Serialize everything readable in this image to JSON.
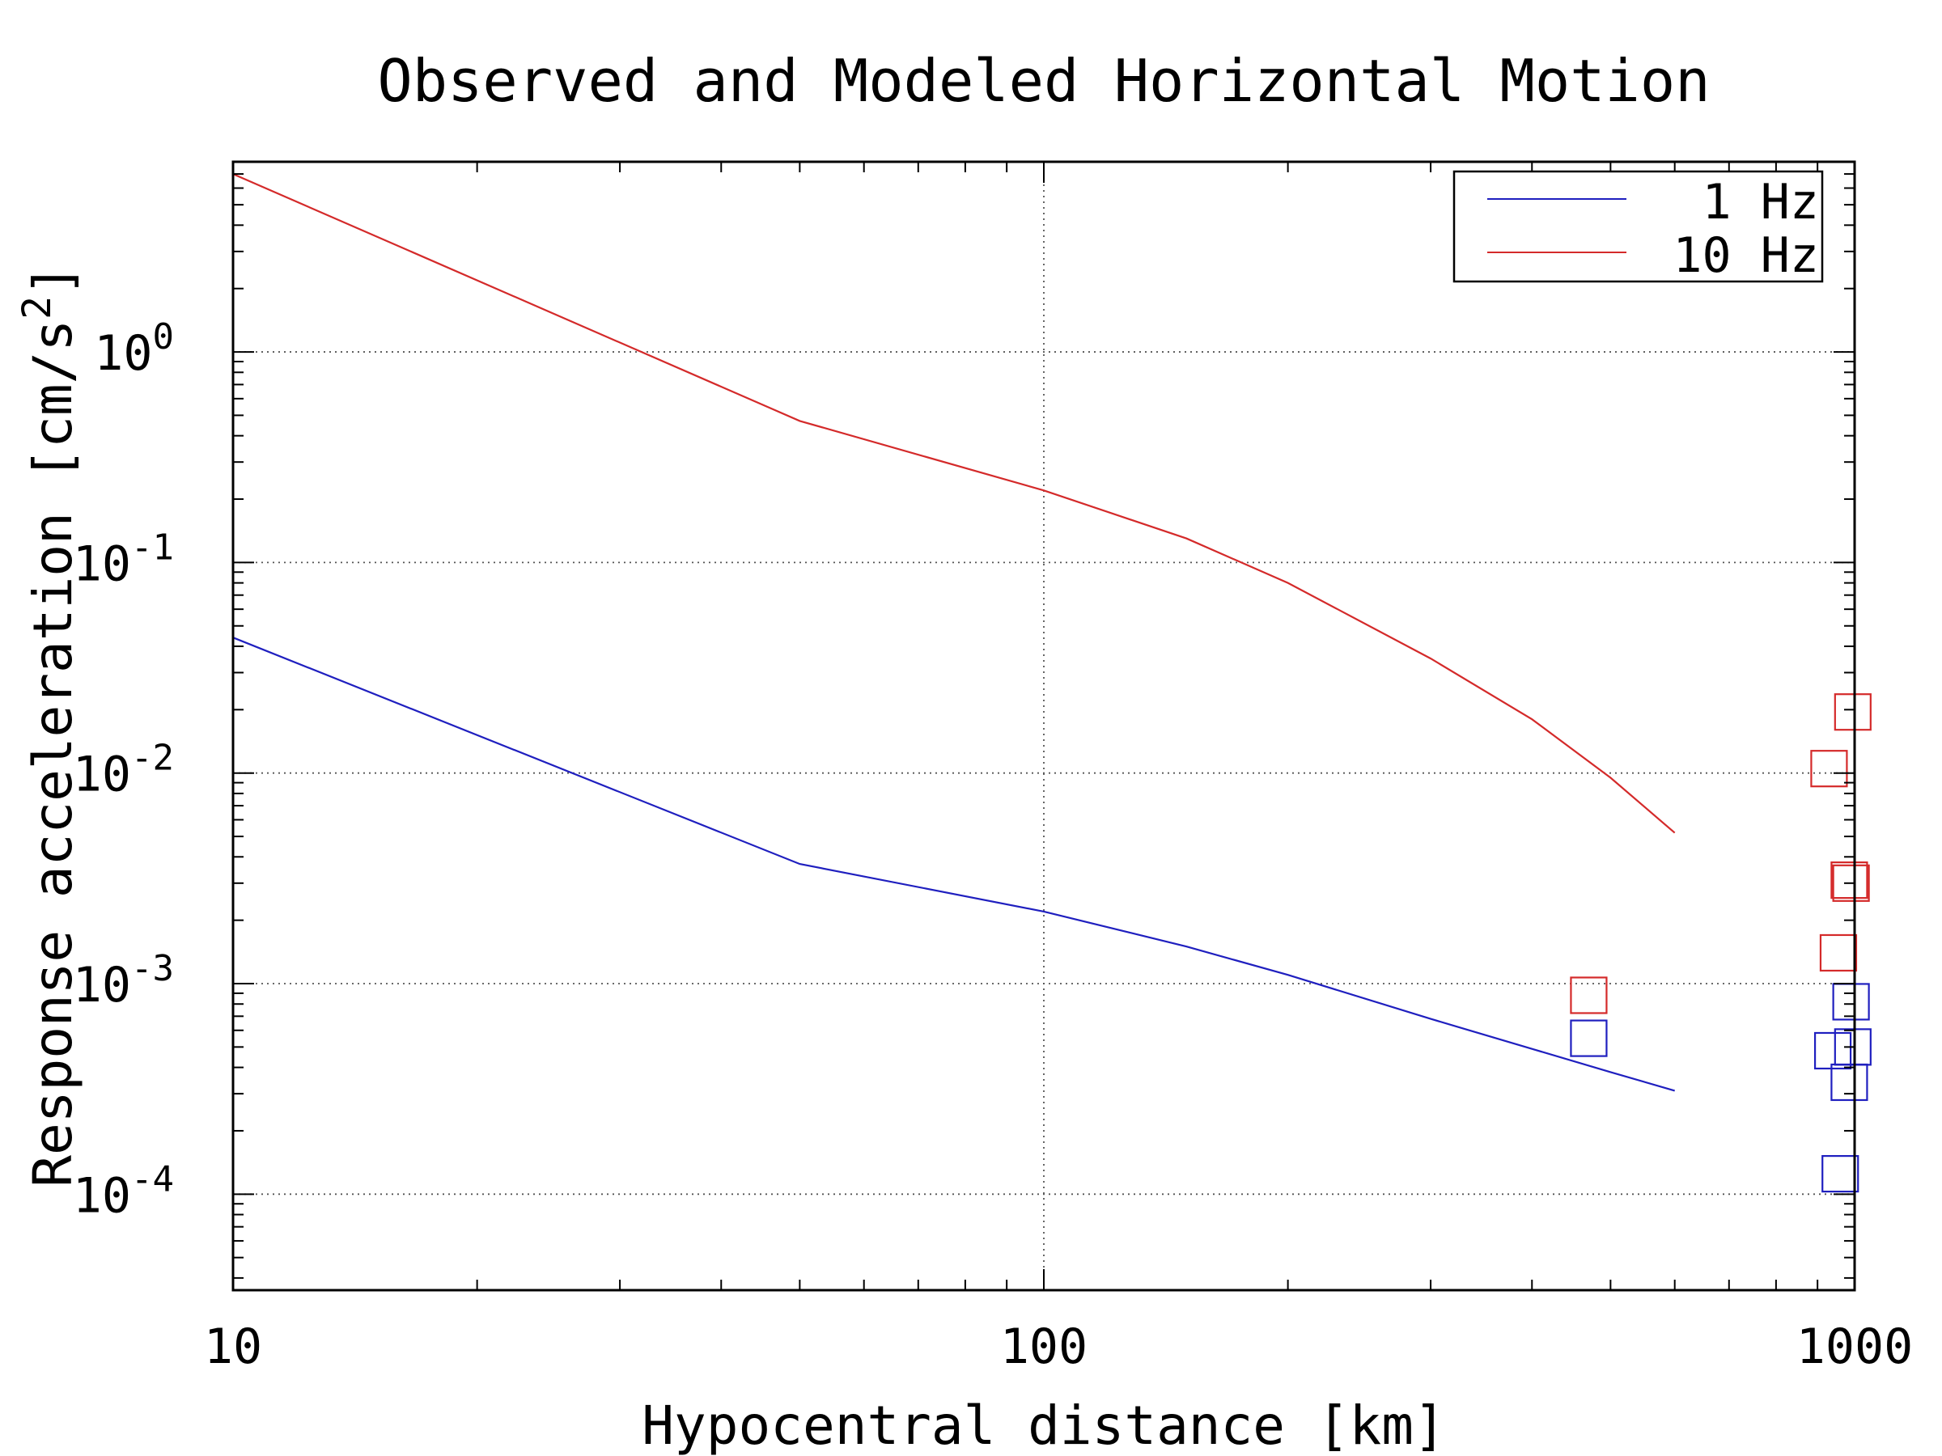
{
  "chart_data": {
    "type": "line",
    "title": "Observed and Modeled Horizontal Motion",
    "xlabel": "Hypocentral distance [km]",
    "ylabel_main": "Response acceleration [cm/s",
    "ylabel_sup": "2",
    "ylabel_close": "]",
    "xscale": "log",
    "yscale": "log",
    "xlim": [
      10,
      1000
    ],
    "ylim": [
      3.5e-05,
      8
    ],
    "grid": "major, dotted",
    "legend_position": "top-right",
    "x_ticks": [
      {
        "value": 10,
        "label": "10"
      },
      {
        "value": 100,
        "label": "100"
      },
      {
        "value": 1000,
        "label": "1000"
      }
    ],
    "y_ticks": [
      {
        "value": 1,
        "base": "10",
        "exp": "0"
      },
      {
        "value": 0.1,
        "base": "10",
        "exp": "-1"
      },
      {
        "value": 0.01,
        "base": "10",
        "exp": "-2"
      },
      {
        "value": 0.001,
        "base": "10",
        "exp": "-3"
      },
      {
        "value": 0.0001,
        "base": "10",
        "exp": "-4"
      }
    ],
    "series": [
      {
        "name": "1 Hz",
        "color": "#1f1fbf",
        "line": {
          "x": [
            10,
            50,
            100,
            150,
            200,
            300,
            400,
            500,
            600
          ],
          "y": [
            0.044,
            0.0037,
            0.0022,
            0.0015,
            0.0011,
            0.00068,
            0.00049,
            0.00038,
            0.00031
          ]
        },
        "observed": {
          "x": [
            470,
            940,
            990,
            995,
            985,
            960
          ],
          "y": [
            0.00055,
            0.00048,
            0.00082,
            0.0005,
            0.00034,
            0.000125
          ]
        }
      },
      {
        "name": "10 Hz",
        "color": "#d42a2a",
        "line": {
          "x": [
            10,
            50,
            100,
            150,
            200,
            300,
            400,
            500,
            600
          ],
          "y": [
            7.0,
            0.47,
            0.22,
            0.13,
            0.08,
            0.035,
            0.018,
            0.0095,
            0.0052
          ]
        },
        "observed": {
          "x": [
            470,
            930,
            995,
            985,
            990,
            955
          ],
          "y": [
            0.00088,
            0.0105,
            0.0195,
            0.0031,
            0.003,
            0.0014
          ]
        }
      }
    ]
  }
}
